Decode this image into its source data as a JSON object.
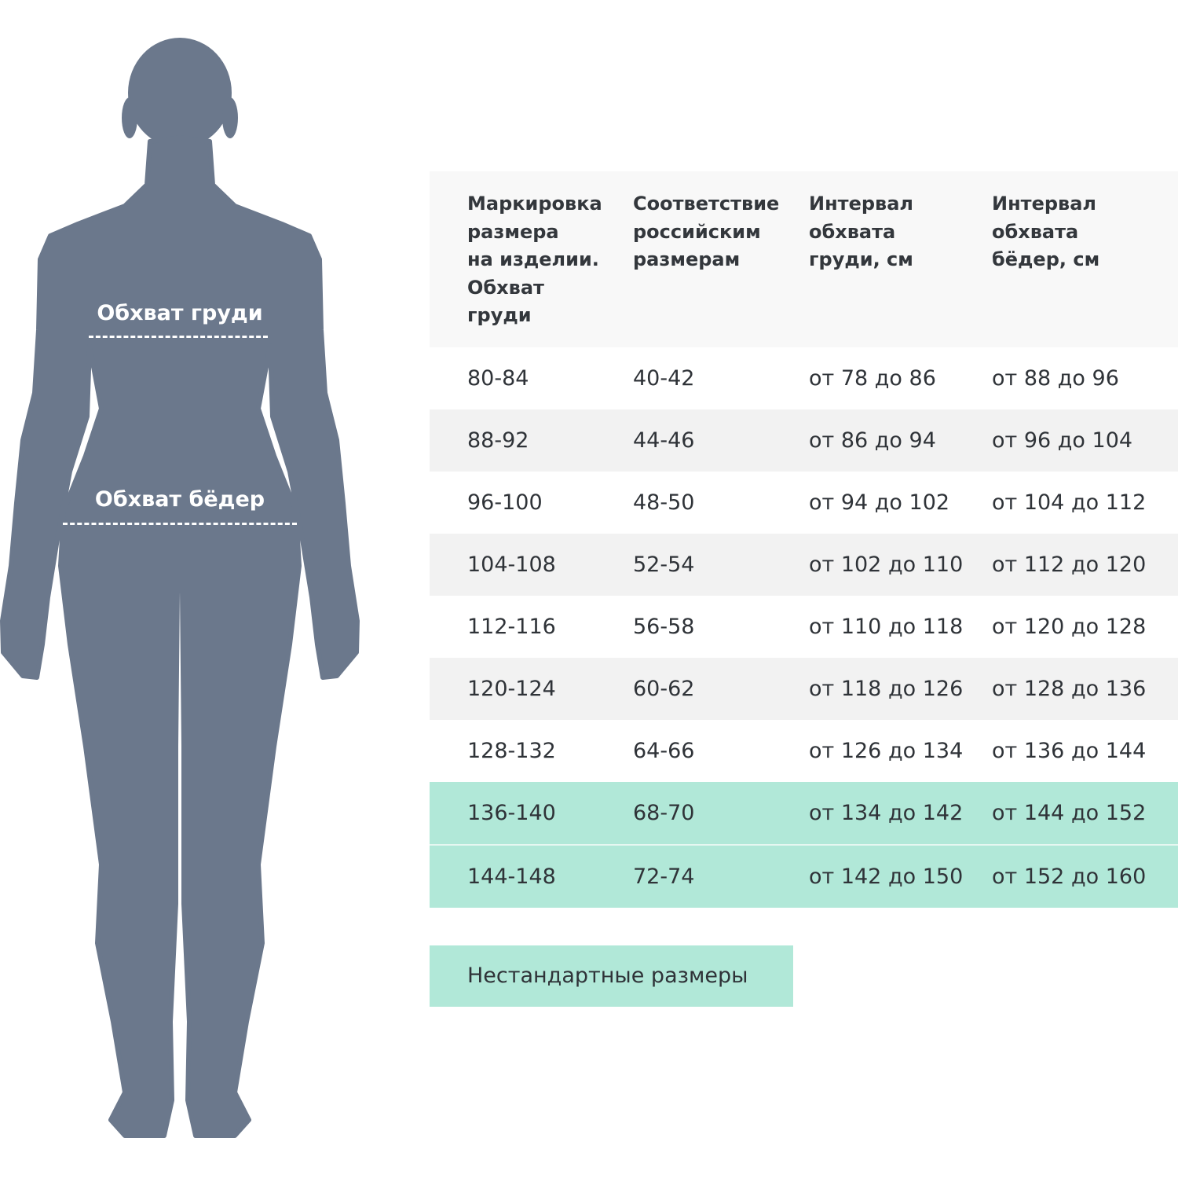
{
  "colors": {
    "silhouette": "#6b788c",
    "header_bg": "#f8f8f8",
    "stripe_bg": "#f2f2f2",
    "highlight_bg": "#b1e8d8"
  },
  "figure": {
    "chest_label": "Обхват груди",
    "hips_label": "Обхват бёдер"
  },
  "table": {
    "headers": [
      "Маркировка размера на изделии. Обхват груди",
      "Соответствие российским размерам",
      "Интервал обхвата груди, см",
      "Интервал обхвата бёдер, см"
    ],
    "header_lines": [
      [
        "Маркировка",
        "размера",
        "на изделии.",
        "Обхват",
        "груди"
      ],
      [
        "Соответствие",
        "российским",
        "размерам"
      ],
      [
        "Интервал",
        "обхвата",
        "груди, см"
      ],
      [
        "Интервал",
        "обхвата",
        "бёдер, см"
      ]
    ],
    "rows": [
      {
        "cells": [
          "80-84",
          "40-42",
          "от 78 до 86",
          "от 88 до 96"
        ],
        "style": "white"
      },
      {
        "cells": [
          "88-92",
          "44-46",
          "от 86 до 94",
          "от 96 до 104"
        ],
        "style": "gray"
      },
      {
        "cells": [
          "96-100",
          "48-50",
          "от 94 до 102",
          "от 104 до 112"
        ],
        "style": "white"
      },
      {
        "cells": [
          "104-108",
          "52-54",
          "от 102 до 110",
          "от 112 до 120"
        ],
        "style": "gray"
      },
      {
        "cells": [
          "112-116",
          "56-58",
          "от 110 до 118",
          "от 120 до 128"
        ],
        "style": "white"
      },
      {
        "cells": [
          "120-124",
          "60-62",
          "от 118 до 126",
          "от 128 до 136"
        ],
        "style": "gray"
      },
      {
        "cells": [
          "128-132",
          "64-66",
          "от 126 до 134",
          "от 136 до 144"
        ],
        "style": "white"
      },
      {
        "cells": [
          "136-140",
          "68-70",
          "от 134 до 142",
          "от 144 до 152"
        ],
        "style": "teal"
      },
      {
        "cells": [
          "144-148",
          "72-74",
          "от 142 до 150",
          "от 152 до 160"
        ],
        "style": "teal"
      }
    ]
  },
  "nonstandard_button": "Нестандартные размеры"
}
